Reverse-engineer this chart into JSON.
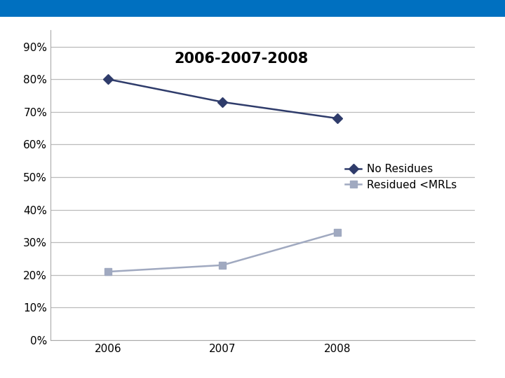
{
  "title": "2006-2007-2008",
  "years": [
    2006,
    2007,
    2008
  ],
  "no_residues": [
    0.8,
    0.73,
    0.68
  ],
  "residued_mrls": [
    0.21,
    0.23,
    0.33
  ],
  "no_residues_color": "#2F3C6B",
  "residued_color": "#A0A9C0",
  "ylim": [
    0.0,
    0.95
  ],
  "yticks": [
    0.0,
    0.1,
    0.2,
    0.3,
    0.4,
    0.5,
    0.6,
    0.7,
    0.8,
    0.9
  ],
  "ytick_labels": [
    "0%",
    "10%",
    "20%",
    "30%",
    "40%",
    "50%",
    "60%",
    "70%",
    "80%",
    "90%"
  ],
  "fig_bg": "#FFFFFF",
  "plot_bg": "#FFFFFF",
  "top_bar_color": "#0070C0",
  "legend_no_residues": "No Residues",
  "legend_residued": "Residued <MRLs",
  "title_fontsize": 15,
  "tick_fontsize": 11,
  "legend_fontsize": 11,
  "grid_color": "#BBBBBB",
  "xlim_left": 2005.5,
  "xlim_right": 2009.2
}
